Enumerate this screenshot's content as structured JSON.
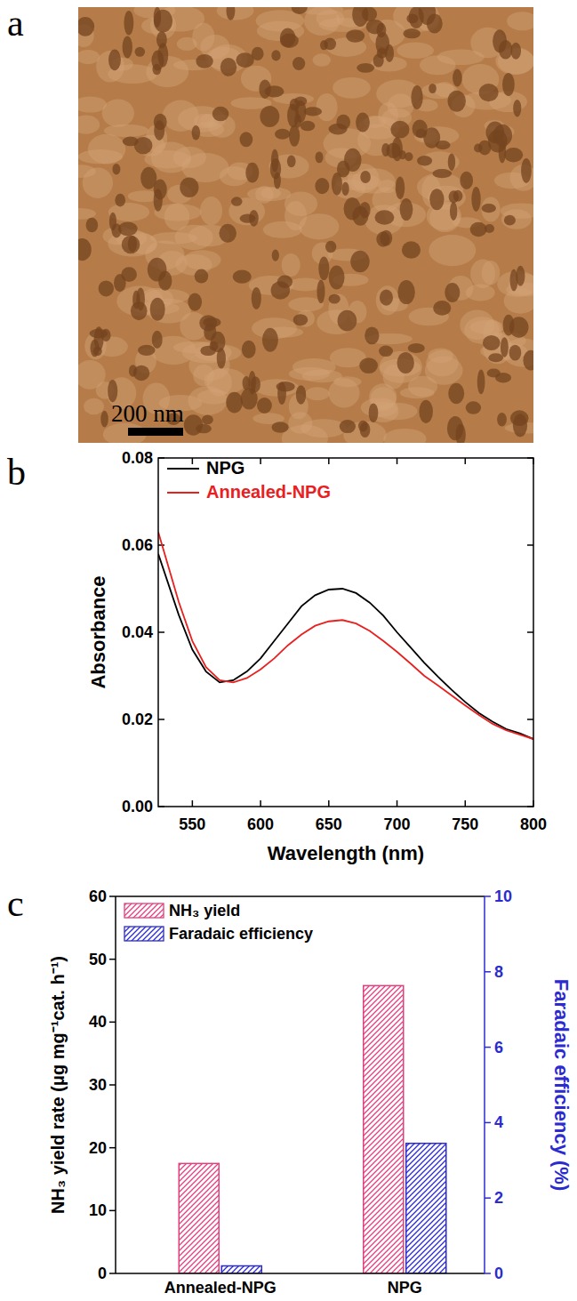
{
  "chart_data": [
    {
      "type": "image",
      "label": "a",
      "annotations": [
        "200 nm"
      ]
    },
    {
      "type": "line",
      "label": "b",
      "x_label": "Wavelength (nm)",
      "y_label": "Absorbance",
      "x": [
        525,
        540,
        550,
        560,
        570,
        580,
        590,
        600,
        610,
        620,
        630,
        640,
        650,
        660,
        670,
        680,
        690,
        700,
        710,
        720,
        730,
        740,
        750,
        760,
        770,
        780,
        790,
        800
      ],
      "series": [
        {
          "name": "NPG",
          "color": "#000000",
          "values": [
            0.058,
            0.044,
            0.036,
            0.031,
            0.0285,
            0.029,
            0.031,
            0.034,
            0.038,
            0.042,
            0.046,
            0.0485,
            0.0498,
            0.05,
            0.049,
            0.0468,
            0.0438,
            0.04,
            0.0365,
            0.033,
            0.0298,
            0.0268,
            0.024,
            0.0215,
            0.0195,
            0.0178,
            0.0168,
            0.0155
          ]
        },
        {
          "name": "Annealed-NPG",
          "color": "#e8201f",
          "values": [
            0.063,
            0.047,
            0.038,
            0.032,
            0.029,
            0.0285,
            0.0295,
            0.0315,
            0.034,
            0.037,
            0.0395,
            0.0415,
            0.0425,
            0.0428,
            0.042,
            0.0403,
            0.038,
            0.0355,
            0.0328,
            0.03,
            0.0278,
            0.0255,
            0.0232,
            0.021,
            0.019,
            0.0175,
            0.0165,
            0.0155
          ]
        }
      ],
      "xlim": [
        525,
        800
      ],
      "xticks": [
        550,
        600,
        650,
        700,
        750,
        800
      ],
      "ylim": [
        0,
        0.08
      ],
      "yticks": [
        {
          "value": 0,
          "label": "0.00"
        },
        {
          "value": 0.02,
          "label": "0.02"
        },
        {
          "value": 0.04,
          "label": "0.04"
        },
        {
          "value": 0.06,
          "label": "0.06"
        },
        {
          "value": 0.08,
          "label": "0.08"
        }
      ],
      "legend": "upper left"
    },
    {
      "type": "bar",
      "label": "c",
      "categories": [
        "Annealed-NPG",
        "NPG"
      ],
      "y_label": "NH₃ yield rate (μg mg⁻¹cat. h⁻¹)",
      "y2_label": "Faradaic efficiency (%)",
      "series": [
        {
          "name": "NH₃ yield",
          "color": "#e0407f",
          "values": [
            17.5,
            45.8
          ]
        },
        {
          "name": "Faradaic efficiency",
          "color": "#2b2bd0",
          "axis": "y2",
          "values": [
            0.2,
            3.45
          ]
        }
      ],
      "ylim": [
        0,
        60
      ],
      "yticks": [
        0,
        10,
        20,
        30,
        40,
        50,
        60
      ],
      "y2lim": [
        0,
        10
      ],
      "y2ticks": [
        0,
        2,
        4,
        6,
        8,
        10
      ],
      "legend": "upper left"
    }
  ]
}
